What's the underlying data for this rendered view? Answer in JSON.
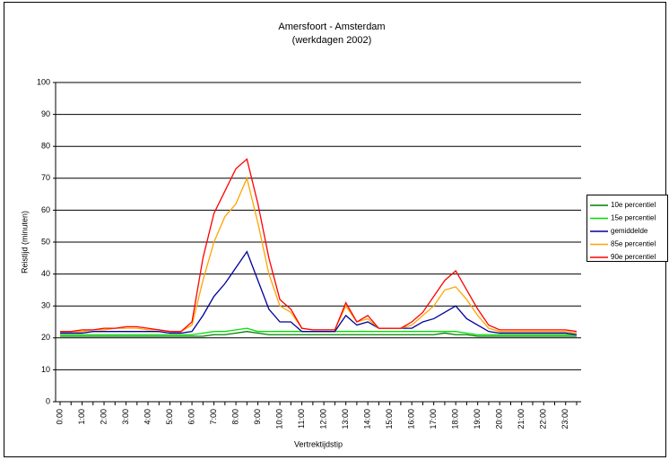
{
  "chart_data": {
    "type": "line",
    "title": "Amersfoort - Amsterdam",
    "subtitle": "(werkdagen 2002)",
    "xlabel": "Vertrektijdstip",
    "ylabel": "Reistijd (minuten)",
    "categories": [
      "0:00",
      null,
      "1:00",
      null,
      "2:00",
      null,
      "3:00",
      null,
      "4:00",
      null,
      "5:00",
      null,
      "6:00",
      null,
      "7:00",
      null,
      "8:00",
      null,
      "9:00",
      null,
      "10:00",
      null,
      "11:00",
      null,
      "12:00",
      null,
      "13:00",
      null,
      "14:00",
      null,
      "15:00",
      null,
      "16:00",
      null,
      "17:00",
      null,
      "18:00",
      null,
      "19:00",
      null,
      "20:00",
      null,
      "21:00",
      null,
      "22:00",
      null,
      "23:00",
      null
    ],
    "series": [
      {
        "name": "10e percentiel",
        "color": "#008000",
        "values": [
          20.5,
          20.5,
          20.5,
          20.5,
          20.5,
          20.5,
          20.5,
          20.5,
          20.5,
          20.5,
          20.5,
          20.5,
          20.5,
          20.5,
          21,
          21,
          21.5,
          22,
          21.5,
          21,
          21,
          21,
          21,
          21,
          21,
          21,
          21,
          21,
          21,
          21,
          21,
          21,
          21,
          21,
          21,
          21.5,
          21,
          21,
          20.5,
          20.5,
          20.5,
          20.5,
          20.5,
          20.5,
          20.5,
          20.5,
          20.5,
          20.5
        ]
      },
      {
        "name": "15e percentiel",
        "color": "#00e000",
        "values": [
          21,
          21,
          21,
          21,
          21,
          21,
          21,
          21,
          21,
          21,
          21,
          21,
          21,
          21.5,
          22,
          22,
          22.5,
          23,
          22,
          22,
          22,
          22,
          22,
          22,
          22,
          22,
          22,
          22,
          22,
          22,
          22,
          22,
          22,
          22,
          22,
          22,
          22,
          21.5,
          21,
          21,
          21,
          21,
          21,
          21,
          21,
          21,
          21,
          21
        ]
      },
      {
        "name": "gemiddelde",
        "color": "#000099",
        "values": [
          21.5,
          21.5,
          21.5,
          22,
          22,
          22,
          22,
          22,
          22,
          22,
          21.5,
          21.5,
          22,
          27,
          33,
          37,
          42,
          47,
          38,
          29,
          25,
          25,
          22,
          22,
          22,
          22,
          27,
          24,
          25,
          23,
          23,
          23,
          23,
          25,
          26,
          28,
          30,
          26,
          24,
          22,
          21.5,
          21.5,
          21.5,
          21.5,
          21.5,
          21.5,
          21.5,
          21
        ]
      },
      {
        "name": "85e percentiel",
        "color": "#ffa500",
        "values": [
          22,
          22,
          22,
          22.5,
          22.5,
          23,
          23,
          23,
          22.5,
          22.5,
          22,
          22,
          24,
          38,
          50,
          58,
          62,
          70,
          56,
          40,
          30,
          28,
          23,
          22.5,
          22.5,
          22.5,
          30,
          25,
          26,
          23,
          23,
          23,
          24,
          27,
          30,
          35,
          36,
          32,
          27,
          23,
          22,
          22,
          22,
          22,
          22,
          22,
          22,
          21.5
        ]
      },
      {
        "name": "90e percentiel",
        "color": "#ff0000",
        "values": [
          22,
          22,
          22.5,
          22.5,
          23,
          23,
          23.5,
          23.5,
          23,
          22.5,
          22,
          22,
          25,
          45,
          59,
          66,
          73,
          76,
          62,
          45,
          32,
          29,
          23,
          22.5,
          22.5,
          22.5,
          31,
          25,
          27,
          23,
          23,
          23,
          25,
          28,
          33,
          38,
          41,
          35,
          29,
          24,
          22.5,
          22.5,
          22.5,
          22.5,
          22.5,
          22.5,
          22.5,
          22
        ]
      }
    ],
    "ylim": [
      0,
      100
    ],
    "yticks": [
      0,
      10,
      20,
      30,
      40,
      50,
      60,
      70,
      80,
      90,
      100
    ],
    "grid": true,
    "legend": "right"
  }
}
